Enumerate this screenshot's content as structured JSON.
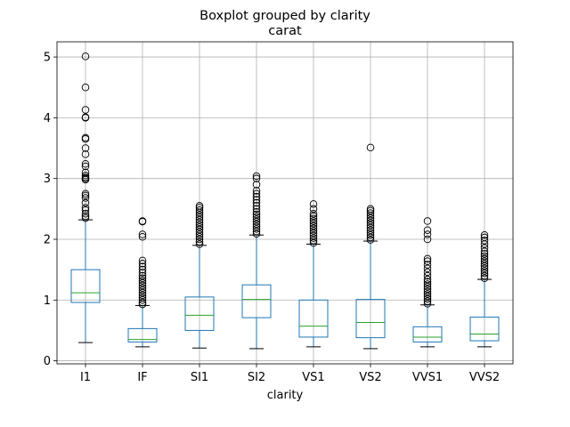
{
  "chart_data": {
    "type": "boxplot",
    "title": "Boxplot grouped by clarity",
    "subtitle": "carat",
    "xlabel": "clarity",
    "ylabel": "",
    "ylim": [
      -0.05,
      5.25
    ],
    "yticks": [
      0,
      1,
      2,
      3,
      4,
      5
    ],
    "grid": true,
    "colors": {
      "box": "#1f77b4",
      "median": "#2ca02c",
      "whisker": "#000000",
      "grid": "#b0b0b0"
    },
    "categories": [
      "I1",
      "IF",
      "SI1",
      "SI2",
      "VS1",
      "VS2",
      "VVS1",
      "VVS2"
    ],
    "boxes": [
      {
        "label": "I1",
        "whislo": 0.3,
        "q1": 0.96,
        "med": 1.12,
        "q3": 1.5,
        "whishi": 2.32,
        "fliers": [
          2.35,
          2.38,
          2.42,
          2.48,
          2.52,
          2.6,
          2.68,
          2.72,
          2.75,
          2.98,
          3.0,
          3.02,
          3.05,
          3.1,
          3.2,
          3.24,
          3.4,
          3.5,
          3.65,
          3.67,
          4.0,
          4.01,
          4.13,
          4.5,
          5.01
        ]
      },
      {
        "label": "IF",
        "whislo": 0.23,
        "q1": 0.31,
        "med": 0.35,
        "q3": 0.53,
        "whishi": 0.91,
        "fliers": [
          0.93,
          0.96,
          1.0,
          1.04,
          1.08,
          1.12,
          1.16,
          1.2,
          1.24,
          1.28,
          1.32,
          1.36,
          1.4,
          1.45,
          1.5,
          1.55,
          1.6,
          1.65,
          2.04,
          2.08,
          2.29,
          2.3
        ]
      },
      {
        "label": "SI1",
        "whislo": 0.21,
        "q1": 0.5,
        "med": 0.75,
        "q3": 1.05,
        "whishi": 1.9,
        "fliers": [
          1.92,
          1.96,
          2.0,
          2.04,
          2.08,
          2.12,
          2.16,
          2.2,
          2.24,
          2.28,
          2.32,
          2.36,
          2.4,
          2.44,
          2.48,
          2.52,
          2.55
        ]
      },
      {
        "label": "SI2",
        "whislo": 0.2,
        "q1": 0.71,
        "med": 1.01,
        "q3": 1.25,
        "whishi": 2.07,
        "fliers": [
          2.09,
          2.13,
          2.17,
          2.21,
          2.25,
          2.29,
          2.33,
          2.37,
          2.41,
          2.45,
          2.5,
          2.55,
          2.6,
          2.65,
          2.7,
          2.75,
          2.8,
          2.9,
          3.0,
          3.04
        ]
      },
      {
        "label": "VS1",
        "whislo": 0.23,
        "q1": 0.39,
        "med": 0.57,
        "q3": 1.0,
        "whishi": 1.92,
        "fliers": [
          1.94,
          1.98,
          2.02,
          2.06,
          2.1,
          2.14,
          2.18,
          2.22,
          2.26,
          2.3,
          2.34,
          2.38,
          2.42,
          2.5,
          2.58
        ]
      },
      {
        "label": "VS2",
        "whislo": 0.2,
        "q1": 0.38,
        "med": 0.63,
        "q3": 1.01,
        "whishi": 1.97,
        "fliers": [
          1.99,
          2.03,
          2.07,
          2.11,
          2.15,
          2.19,
          2.23,
          2.27,
          2.31,
          2.35,
          2.39,
          2.43,
          2.47,
          2.5,
          3.51
        ]
      },
      {
        "label": "VVS1",
        "whislo": 0.23,
        "q1": 0.31,
        "med": 0.39,
        "q3": 0.56,
        "whishi": 0.92,
        "fliers": [
          0.94,
          0.98,
          1.02,
          1.06,
          1.1,
          1.14,
          1.18,
          1.22,
          1.26,
          1.3,
          1.34,
          1.4,
          1.46,
          1.52,
          1.58,
          1.64,
          1.68,
          2.0,
          2.08,
          2.15,
          2.3
        ]
      },
      {
        "label": "VVS2",
        "whislo": 0.23,
        "q1": 0.33,
        "med": 0.44,
        "q3": 0.72,
        "whishi": 1.34,
        "fliers": [
          1.36,
          1.4,
          1.44,
          1.48,
          1.52,
          1.56,
          1.6,
          1.64,
          1.68,
          1.72,
          1.76,
          1.8,
          1.86,
          1.92,
          1.98,
          2.03,
          2.07
        ]
      }
    ]
  }
}
